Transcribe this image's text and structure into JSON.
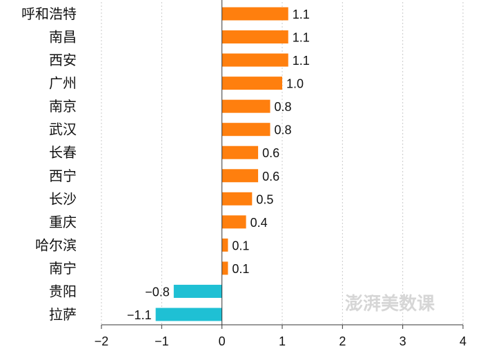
{
  "chart_data": {
    "type": "bar",
    "orientation": "horizontal",
    "categories": [
      "呼和浩特",
      "南昌",
      "西安",
      "广州",
      "南京",
      "武汉",
      "长春",
      "西宁",
      "长沙",
      "重庆",
      "哈尔滨",
      "南宁",
      "贵阳",
      "拉萨"
    ],
    "values": [
      1.1,
      1.1,
      1.1,
      1.0,
      0.8,
      0.8,
      0.6,
      0.6,
      0.5,
      0.4,
      0.1,
      0.1,
      -0.8,
      -1.1
    ],
    "value_labels": [
      "1.1",
      "1.1",
      "1.1",
      "1.0",
      "0.8",
      "0.8",
      "0.6",
      "0.6",
      "0.5",
      "0.4",
      "0.1",
      "0.1",
      "−0.8",
      "−1.1"
    ],
    "xlim": [
      -2,
      4
    ],
    "xticks": [
      -2,
      -1,
      0,
      1,
      2,
      3,
      4
    ],
    "xtick_labels": [
      "−2",
      "−1",
      "0",
      "1",
      "2",
      "3",
      "4"
    ],
    "grid": "vertical dotted",
    "colors": {
      "positive": "#ff7f0e",
      "negative": "#1fc0d4",
      "grid": "#c8c8c8",
      "axis": "#333333"
    },
    "title": "",
    "xlabel": "",
    "ylabel": ""
  },
  "watermark": "澎湃美数课"
}
